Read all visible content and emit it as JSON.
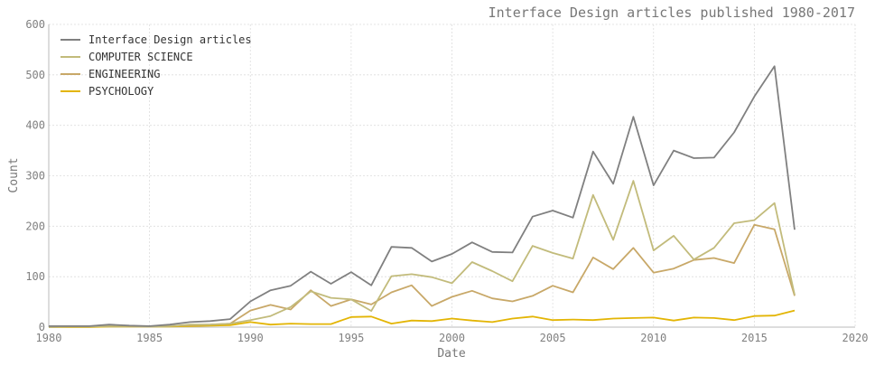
{
  "chart_data": {
    "type": "line",
    "title": "Interface Design articles published 1980-2017",
    "xlabel": "Date",
    "ylabel": "Count",
    "xlim": [
      1980,
      2020
    ],
    "ylim": [
      0,
      600
    ],
    "x_ticks": [
      1980,
      1985,
      1990,
      1995,
      2000,
      2005,
      2010,
      2015,
      2020
    ],
    "y_ticks": [
      0,
      100,
      200,
      300,
      400,
      500,
      600
    ],
    "grid": true,
    "legend_position": "top-left",
    "x": [
      1980,
      1981,
      1982,
      1983,
      1984,
      1985,
      1986,
      1987,
      1988,
      1989,
      1990,
      1991,
      1992,
      1993,
      1994,
      1995,
      1996,
      1997,
      1998,
      1999,
      2000,
      2001,
      2002,
      2003,
      2004,
      2005,
      2006,
      2007,
      2008,
      2009,
      2010,
      2011,
      2012,
      2013,
      2014,
      2015,
      2016,
      2017
    ],
    "series": [
      {
        "name": "Interface Design articles",
        "color": "#808080",
        "values": [
          2,
          2,
          2,
          5,
          3,
          2,
          5,
          10,
          12,
          16,
          51,
          73,
          82,
          110,
          86,
          109,
          83,
          159,
          157,
          130,
          145,
          168,
          149,
          148,
          219,
          231,
          217,
          348,
          284,
          417,
          281,
          350,
          335,
          336,
          386,
          457,
          517,
          193
        ]
      },
      {
        "name": "COMPUTER SCIENCE",
        "color": "#c2bb7b",
        "values": [
          0,
          1,
          1,
          2,
          2,
          1,
          2,
          5,
          5,
          7,
          14,
          22,
          40,
          71,
          58,
          55,
          32,
          101,
          105,
          99,
          87,
          129,
          111,
          91,
          161,
          147,
          136,
          262,
          173,
          290,
          152,
          181,
          134,
          157,
          206,
          212,
          246,
          64
        ]
      },
      {
        "name": "ENGINEERING",
        "color": "#c8a868",
        "values": [
          0,
          1,
          1,
          2,
          2,
          1,
          2,
          4,
          5,
          7,
          33,
          44,
          35,
          73,
          42,
          55,
          45,
          69,
          83,
          42,
          60,
          72,
          57,
          51,
          62,
          82,
          69,
          138,
          115,
          157,
          108,
          116,
          133,
          137,
          127,
          203,
          194,
          62
        ]
      },
      {
        "name": "PSYCHOLOGY",
        "color": "#e3b505",
        "values": [
          0,
          0,
          0,
          1,
          1,
          1,
          1,
          2,
          3,
          4,
          10,
          5,
          7,
          6,
          6,
          20,
          21,
          7,
          13,
          12,
          17,
          13,
          10,
          17,
          21,
          14,
          15,
          14,
          17,
          18,
          19,
          13,
          19,
          18,
          14,
          22,
          23,
          33
        ]
      }
    ]
  }
}
